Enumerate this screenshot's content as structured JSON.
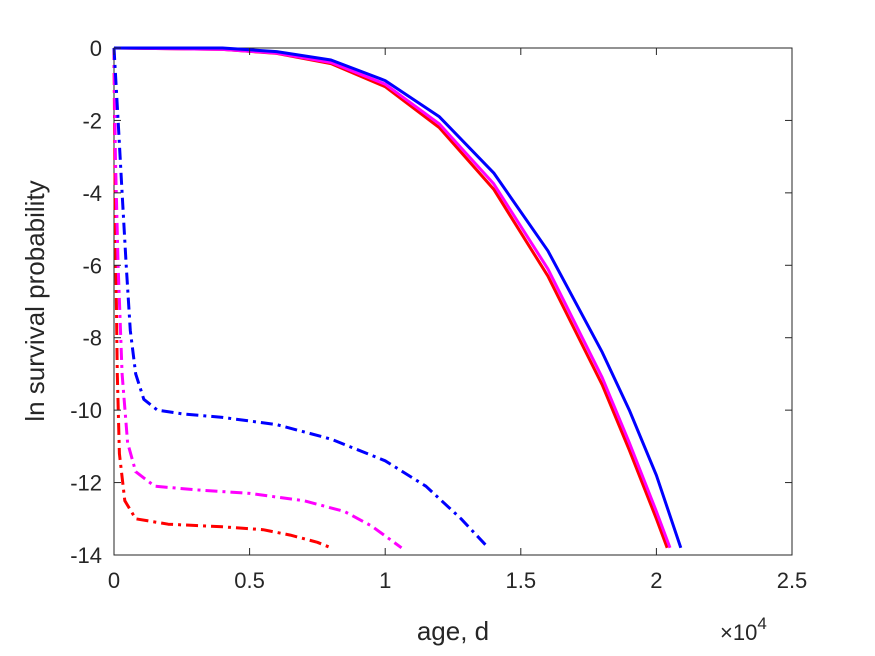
{
  "chart_data": {
    "type": "line",
    "xlabel": "age, d",
    "ylabel": "ln survival probability",
    "x_multiplier": {
      "base": "×10",
      "exponent": "4"
    },
    "xlim": [
      0,
      25000
    ],
    "ylim": [
      -14,
      0
    ],
    "xticks": [
      0,
      5000,
      10000,
      15000,
      20000,
      25000
    ],
    "xtick_labels": [
      "0",
      "0.5",
      "1",
      "1.5",
      "2",
      "2.5"
    ],
    "yticks": [
      0,
      -2,
      -4,
      -6,
      -8,
      -10,
      -12,
      -14
    ],
    "ytick_labels": [
      "0",
      "-2",
      "-4",
      "-6",
      "-8",
      "-10",
      "-12",
      "-14"
    ],
    "grid": false,
    "series": [
      {
        "color": "#ff0000",
        "style": "solid",
        "points": [
          [
            0,
            0
          ],
          [
            4000,
            -0.04
          ],
          [
            6000,
            -0.15
          ],
          [
            8000,
            -0.43
          ],
          [
            10000,
            -1.07
          ],
          [
            12000,
            -2.2
          ],
          [
            14000,
            -3.9
          ],
          [
            16000,
            -6.3
          ],
          [
            18000,
            -9.3
          ],
          [
            19000,
            -11.1
          ],
          [
            20000,
            -13.0
          ],
          [
            20400,
            -13.8
          ]
        ]
      },
      {
        "color": "#ff00ff",
        "style": "solid",
        "points": [
          [
            0,
            0
          ],
          [
            4000,
            -0.04
          ],
          [
            6000,
            -0.14
          ],
          [
            8000,
            -0.4
          ],
          [
            10000,
            -1.0
          ],
          [
            12000,
            -2.1
          ],
          [
            14000,
            -3.75
          ],
          [
            16000,
            -6.1
          ],
          [
            18000,
            -9.1
          ],
          [
            19000,
            -10.9
          ],
          [
            20000,
            -12.8
          ],
          [
            20500,
            -13.8
          ]
        ]
      },
      {
        "color": "#0000ff",
        "style": "solid",
        "points": [
          [
            0,
            0
          ],
          [
            4000,
            0
          ],
          [
            6000,
            -0.1
          ],
          [
            8000,
            -0.33
          ],
          [
            10000,
            -0.9
          ],
          [
            12000,
            -1.9
          ],
          [
            14000,
            -3.45
          ],
          [
            16000,
            -5.6
          ],
          [
            18000,
            -8.4
          ],
          [
            19000,
            -10.0
          ],
          [
            20000,
            -11.8
          ],
          [
            20900,
            -13.8
          ]
        ]
      },
      {
        "color": "#ff0000",
        "style": "dashdot",
        "points": [
          [
            0,
            0
          ],
          [
            30,
            -3
          ],
          [
            70,
            -6
          ],
          [
            120,
            -9
          ],
          [
            200,
            -11.2
          ],
          [
            400,
            -12.5
          ],
          [
            800,
            -13.0
          ],
          [
            2000,
            -13.15
          ],
          [
            4000,
            -13.22
          ],
          [
            5500,
            -13.3
          ],
          [
            6500,
            -13.45
          ],
          [
            7500,
            -13.65
          ],
          [
            8000,
            -13.8
          ]
        ]
      },
      {
        "color": "#ff00ff",
        "style": "dashdot",
        "points": [
          [
            0,
            0
          ],
          [
            50,
            -3
          ],
          [
            150,
            -6
          ],
          [
            300,
            -9
          ],
          [
            500,
            -10.9
          ],
          [
            800,
            -11.7
          ],
          [
            1500,
            -12.1
          ],
          [
            3000,
            -12.2
          ],
          [
            5000,
            -12.3
          ],
          [
            7000,
            -12.5
          ],
          [
            8500,
            -12.8
          ],
          [
            9500,
            -13.2
          ],
          [
            10600,
            -13.8
          ]
        ]
      },
      {
        "color": "#0000ff",
        "style": "dashdot",
        "points": [
          [
            0,
            0
          ],
          [
            150,
            -2
          ],
          [
            300,
            -4
          ],
          [
            450,
            -6
          ],
          [
            600,
            -7.8
          ],
          [
            800,
            -9.0
          ],
          [
            1100,
            -9.7
          ],
          [
            1600,
            -10.0
          ],
          [
            2500,
            -10.1
          ],
          [
            4000,
            -10.2
          ],
          [
            6000,
            -10.4
          ],
          [
            8000,
            -10.8
          ],
          [
            10000,
            -11.4
          ],
          [
            11500,
            -12.1
          ],
          [
            12800,
            -13.0
          ],
          [
            13800,
            -13.8
          ]
        ]
      }
    ]
  }
}
